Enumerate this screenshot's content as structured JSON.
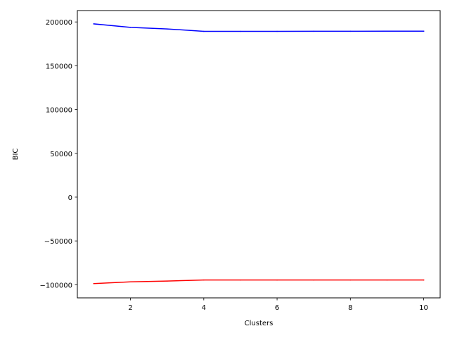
{
  "chart_data": {
    "type": "line",
    "title": "",
    "xlabel": "Clusters",
    "ylabel": "BIC",
    "x": [
      1,
      2,
      3,
      4,
      5,
      6,
      7,
      8,
      9,
      10
    ],
    "xlim": [
      0.55,
      10.45
    ],
    "ylim": [
      -115000,
      213000
    ],
    "x_ticks": [
      2,
      4,
      6,
      8,
      10
    ],
    "x_tick_labels": [
      "2",
      "4",
      "6",
      "8",
      "10"
    ],
    "y_ticks": [
      200000,
      150000,
      100000,
      50000,
      0,
      -50000,
      -100000
    ],
    "y_tick_labels": [
      "200000",
      "150000",
      "100000",
      "50000",
      "0",
      "−50000",
      "−100000"
    ],
    "grid": false,
    "series": [
      {
        "color": "#0000ff",
        "values": [
          197800,
          193800,
          192000,
          189300,
          189300,
          189300,
          189400,
          189400,
          189500,
          189500
        ]
      },
      {
        "color": "#ff0000",
        "values": [
          -98700,
          -96700,
          -95800,
          -94600,
          -94600,
          -94600,
          -94600,
          -94600,
          -94600,
          -94600
        ]
      }
    ]
  }
}
